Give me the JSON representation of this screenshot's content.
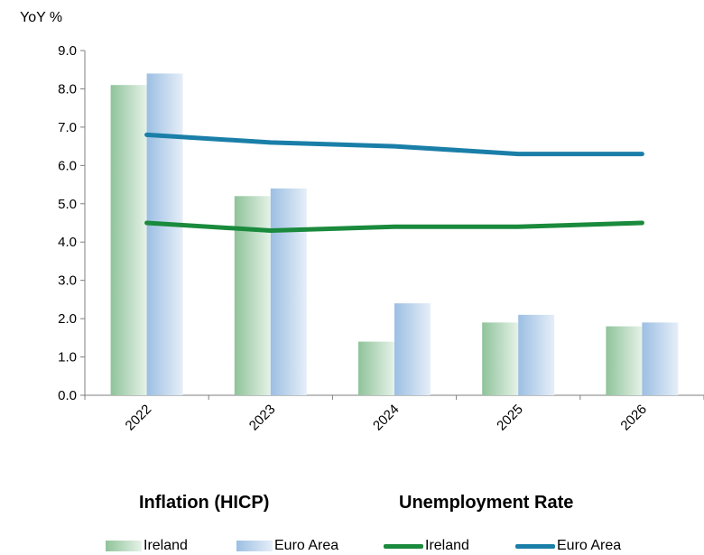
{
  "chart_data": {
    "type": "bar",
    "ylabel": "YoY %",
    "ylim": [
      0,
      9
    ],
    "yticks": [
      "0.0",
      "1.0",
      "2.0",
      "3.0",
      "4.0",
      "5.0",
      "6.0",
      "7.0",
      "8.0",
      "9.0"
    ],
    "categories": [
      "2022",
      "2023",
      "2024",
      "2025",
      "2026"
    ],
    "bar_group_title": "Inflation (HICP)",
    "line_group_title": "Unemployment Rate",
    "series": [
      {
        "name": "Ireland",
        "kind": "bar",
        "group": "Inflation (HICP)",
        "values": [
          8.1,
          5.2,
          1.4,
          1.9,
          1.8
        ],
        "color": "#9cc9a3"
      },
      {
        "name": "Euro Area",
        "kind": "bar",
        "group": "Inflation (HICP)",
        "values": [
          8.4,
          5.4,
          2.4,
          2.1,
          1.9
        ],
        "color": "#a9c7e6"
      },
      {
        "name": "Ireland",
        "kind": "line",
        "group": "Unemployment Rate",
        "values": [
          4.5,
          4.3,
          4.4,
          4.4,
          4.5
        ],
        "color": "#1a8a3c"
      },
      {
        "name": "Euro Area",
        "kind": "line",
        "group": "Unemployment Rate",
        "values": [
          6.8,
          6.6,
          6.5,
          6.3,
          6.3
        ],
        "color": "#1a7fa8"
      }
    ],
    "grid": false,
    "legend_position": "bottom"
  }
}
